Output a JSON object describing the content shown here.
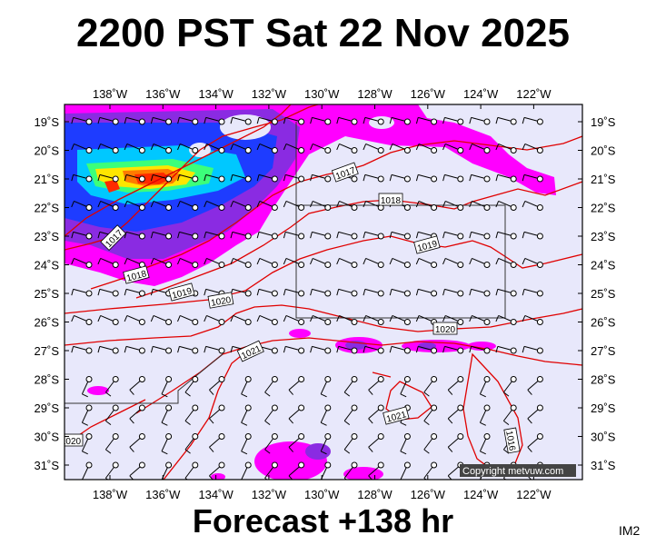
{
  "title": "2200 PST Sat 22 Nov 2025",
  "forecast_label": "Forecast +138 hr",
  "image_code": "IM2",
  "copyright": "Copyright metvuw.com",
  "map": {
    "lon_labels": [
      "138˚W",
      "136˚W",
      "134˚W",
      "132˚W",
      "130˚W",
      "128˚W",
      "126˚W",
      "124˚W",
      "122˚W"
    ],
    "lat_labels": [
      "19˚S",
      "20˚S",
      "21˚S",
      "22˚S",
      "23˚S",
      "24˚S",
      "25˚S",
      "26˚S",
      "27˚S",
      "28˚S",
      "29˚S",
      "30˚S",
      "31˚S"
    ],
    "isobar_labels": [
      "1017",
      "1018",
      "1019",
      "1020",
      "1021",
      "1016",
      "1017",
      "1018",
      "1019",
      "1020",
      "1021",
      "1020"
    ],
    "colors": {
      "background": "#e8e8fb",
      "isobar": "#e00000",
      "rain_magenta": "#ff00ff",
      "rain_purple": "#8a2be2",
      "rain_blue": "#1e3cff",
      "rain_cyan": "#00c8ff",
      "rain_green": "#3cff7a",
      "rain_yellow": "#ffe600",
      "rain_orange": "#ff7a00",
      "rain_red": "#ff2a00"
    }
  }
}
